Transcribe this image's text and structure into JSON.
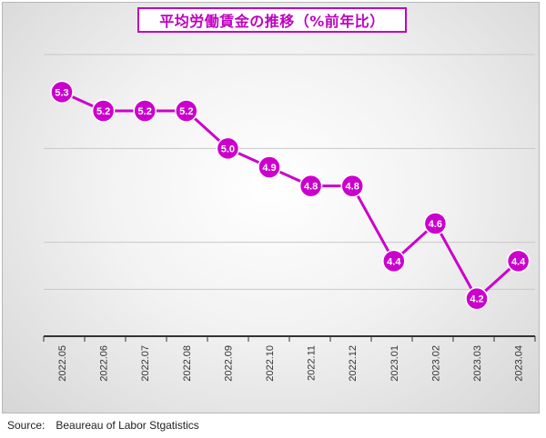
{
  "chart_data": {
    "type": "line",
    "title": "平均労働賃金の推移（%前年比）",
    "categories": [
      "2022.05",
      "2022.06",
      "2022.07",
      "2022.08",
      "2022.09",
      "2022.10",
      "2022.11",
      "2022.12",
      "2023.01",
      "2023.02",
      "2023.03",
      "2023.04"
    ],
    "values": [
      5.3,
      5.2,
      5.2,
      5.2,
      5.0,
      4.9,
      4.8,
      4.8,
      4.4,
      4.6,
      4.2,
      4.4
    ],
    "value_labels": [
      "5.3",
      "5.2",
      "5.2",
      "5.2",
      "5.0",
      "4.9",
      "4.8",
      "4.8",
      "4.4",
      "4.6",
      "4.2",
      "4.4"
    ],
    "ylim": [
      4.0,
      5.5
    ],
    "grid": true,
    "y_tick_labels_visible": false,
    "color": "#cc00cc"
  },
  "source": {
    "label": "Source:",
    "text": "Beaureau of Labor Stgatistics"
  }
}
